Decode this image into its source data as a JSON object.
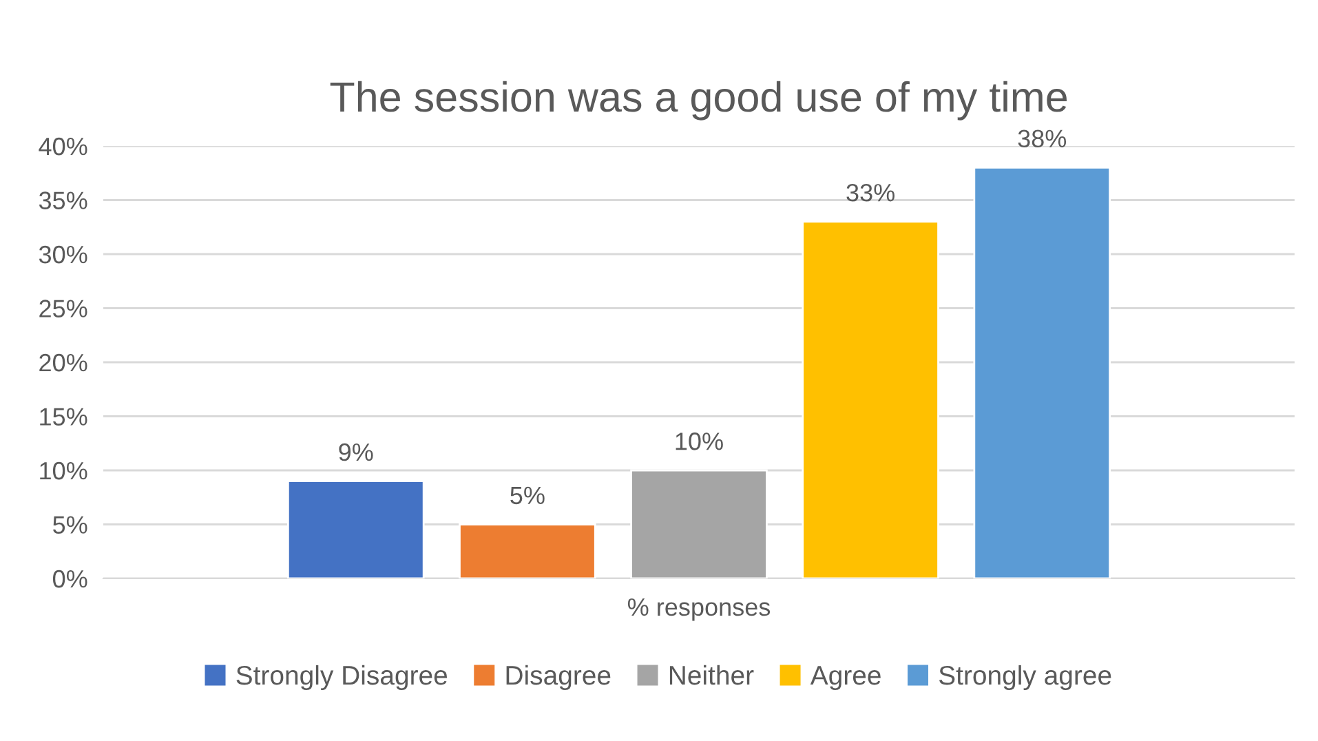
{
  "chart_data": {
    "type": "bar",
    "title": "The session was a good use of my time",
    "categories": [
      "% responses"
    ],
    "series": [
      {
        "name": "Strongly Disagree",
        "color": "#4472c4",
        "values": [
          9
        ],
        "value_labels": [
          "9%"
        ]
      },
      {
        "name": "Disagree",
        "color": "#ed7d31",
        "values": [
          5
        ],
        "value_labels": [
          "5%"
        ]
      },
      {
        "name": "Neither",
        "color": "#a5a5a5",
        "values": [
          10
        ],
        "value_labels": [
          "10%"
        ]
      },
      {
        "name": "Agree",
        "color": "#ffc000",
        "values": [
          33
        ],
        "value_labels": [
          "33%"
        ]
      },
      {
        "name": "Strongly agree",
        "color": "#5b9bd5",
        "values": [
          38
        ],
        "value_labels": [
          "38%"
        ]
      }
    ],
    "ylim": [
      0,
      40
    ],
    "yticks": [
      {
        "value": 0,
        "label": "0%"
      },
      {
        "value": 5,
        "label": "5%"
      },
      {
        "value": 10,
        "label": "10%"
      },
      {
        "value": 15,
        "label": "15%"
      },
      {
        "value": 20,
        "label": "20%"
      },
      {
        "value": 25,
        "label": "25%"
      },
      {
        "value": 30,
        "label": "30%"
      },
      {
        "value": 35,
        "label": "35%"
      },
      {
        "value": 40,
        "label": "40%"
      }
    ],
    "grid": "y",
    "legend": "bottom"
  }
}
